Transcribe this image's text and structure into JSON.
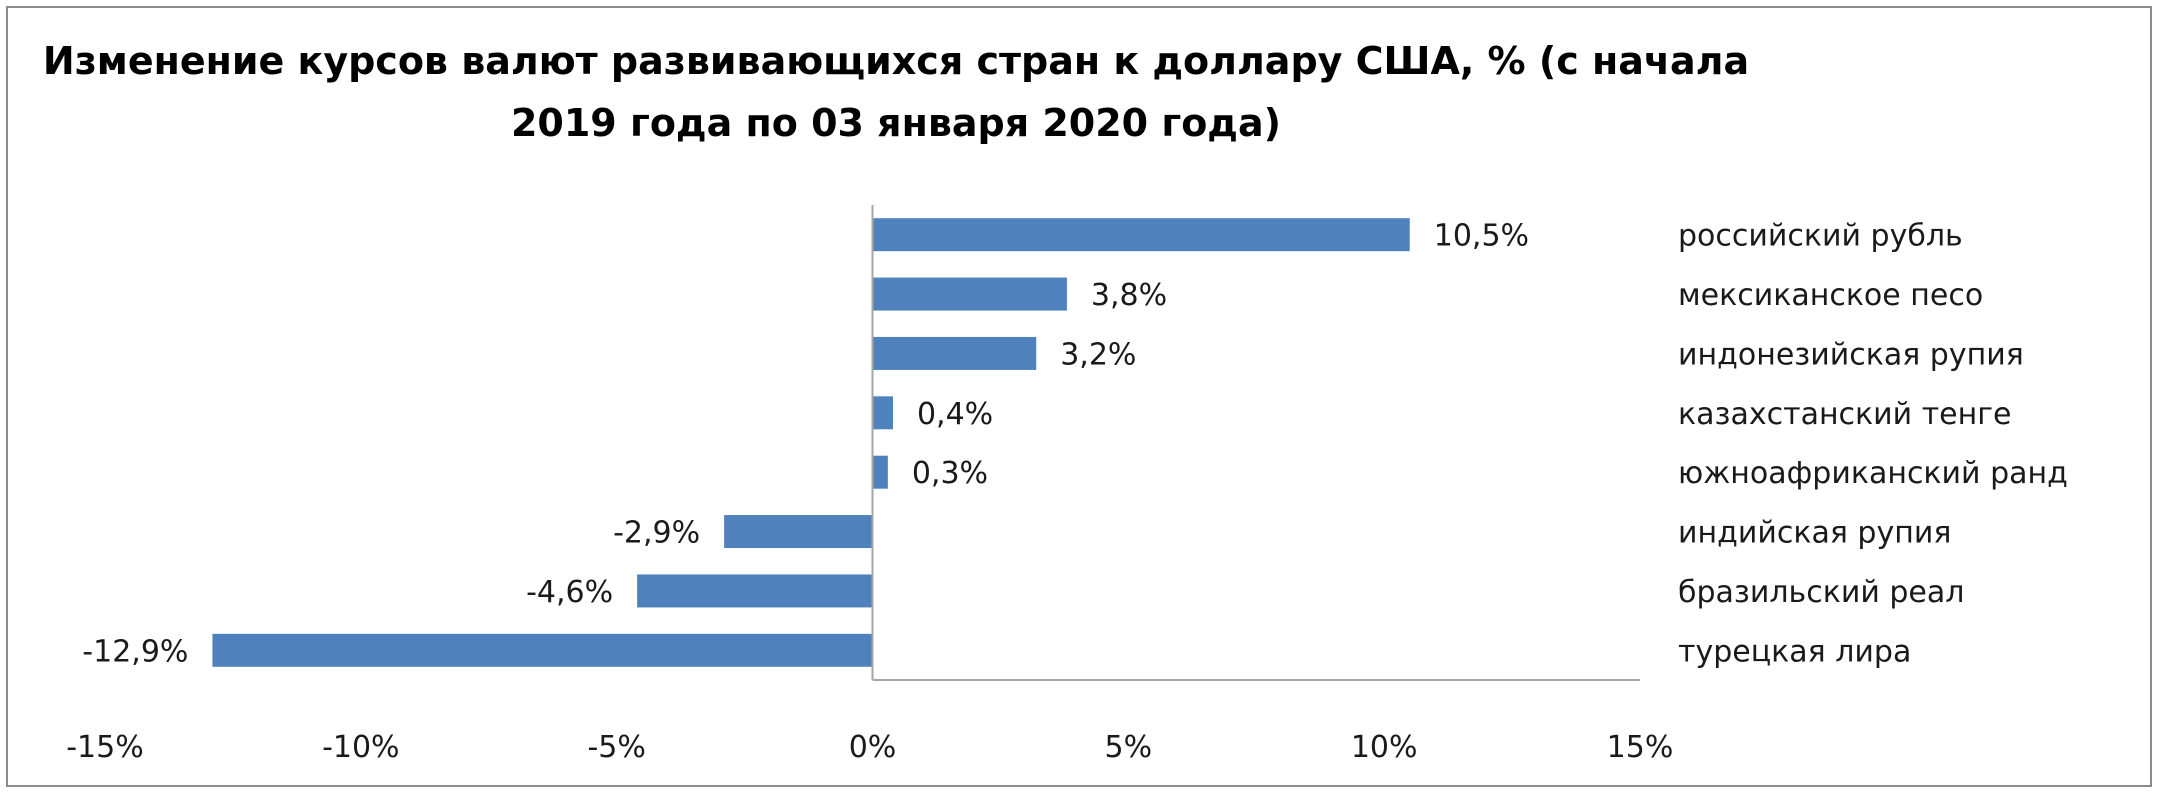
{
  "chart_data": {
    "type": "bar",
    "orientation": "horizontal",
    "title_line1": "Изменение курсов валют развивающихся стран к доллару США, % (с начала",
    "title_line2": "2019 года по 03 января 2020 года)",
    "categories": [
      "российский рубль",
      "мексиканское песо",
      "индонезийская рупия",
      "казахстанский тенге",
      "южноафриканский ранд",
      "индийская рупия",
      "бразильский реал",
      "турецкая лира"
    ],
    "values": [
      10.5,
      3.8,
      3.2,
      0.4,
      0.3,
      -2.9,
      -4.6,
      -12.9
    ],
    "data_labels": [
      "10,5%",
      "3,8%",
      "3,2%",
      "0,4%",
      "0,3%",
      "-2,9%",
      "-4,6%",
      "-12,9%"
    ],
    "xlim": [
      -15,
      15
    ],
    "x_ticks": [
      -15,
      -10,
      -5,
      0,
      5,
      10,
      15
    ],
    "x_tick_labels": [
      "-15%",
      "-10%",
      "-5%",
      "0%",
      "5%",
      "10%",
      "15%"
    ],
    "xlabel": "",
    "ylabel": "",
    "grid": false,
    "legend": false,
    "bar_color": "#4f81bd"
  }
}
